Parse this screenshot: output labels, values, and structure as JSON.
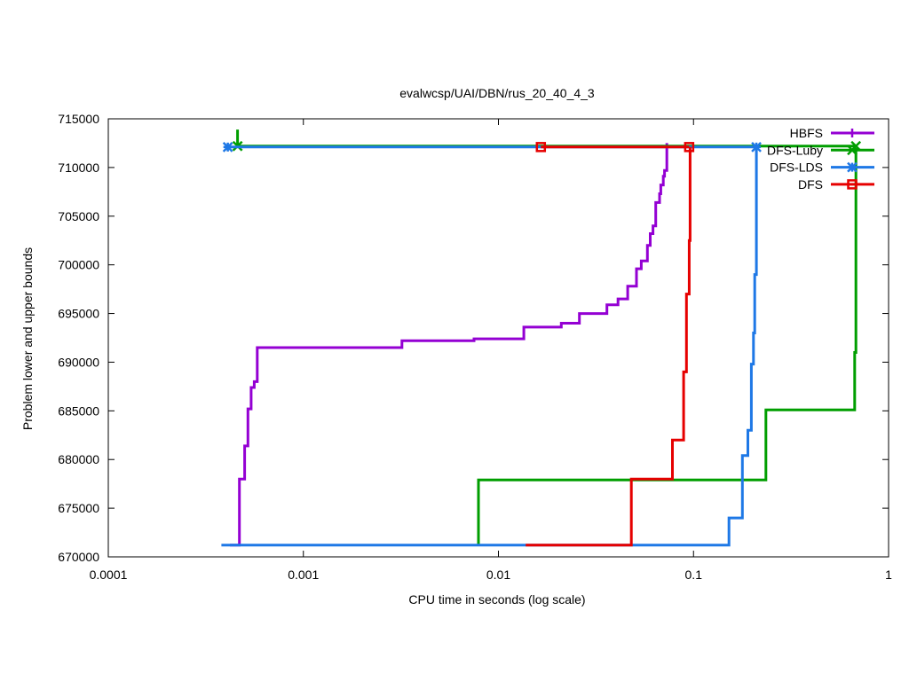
{
  "chart_data": {
    "type": "line",
    "title": "evalwcsp/UAI/DBN/rus_20_40_4_3",
    "xlabel": "CPU time in seconds (log scale)",
    "ylabel": "Problem lower and upper bounds",
    "x_scale": "log",
    "xlim": [
      0.0001,
      1
    ],
    "ylim": [
      670000,
      715000
    ],
    "x_ticks": [
      {
        "value": 0.0001,
        "label": "0.0001"
      },
      {
        "value": 0.001,
        "label": "0.001"
      },
      {
        "value": 0.01,
        "label": "0.01"
      },
      {
        "value": 0.1,
        "label": "0.1"
      },
      {
        "value": 1,
        "label": "1"
      }
    ],
    "y_ticks": [
      {
        "value": 670000,
        "label": "670000"
      },
      {
        "value": 675000,
        "label": "675000"
      },
      {
        "value": 680000,
        "label": "680000"
      },
      {
        "value": 685000,
        "label": "685000"
      },
      {
        "value": 690000,
        "label": "690000"
      },
      {
        "value": 695000,
        "label": "695000"
      },
      {
        "value": 700000,
        "label": "700000"
      },
      {
        "value": 705000,
        "label": "705000"
      },
      {
        "value": 710000,
        "label": "710000"
      },
      {
        "value": 715000,
        "label": "715000"
      }
    ],
    "grid": false,
    "legend_position": "top-right",
    "series": [
      {
        "name": "HBFS",
        "color": "#9400d3",
        "marker": "plus",
        "lower": [
          [
            0.00042,
            671200
          ],
          [
            0.00047,
            671200
          ],
          [
            0.00047,
            678000
          ],
          [
            0.0005,
            678000
          ],
          [
            0.0005,
            681400
          ],
          [
            0.00052,
            681400
          ],
          [
            0.00052,
            685200
          ],
          [
            0.00054,
            685200
          ],
          [
            0.00054,
            687400
          ],
          [
            0.00056,
            687400
          ],
          [
            0.00056,
            688000
          ],
          [
            0.00058,
            688000
          ],
          [
            0.00058,
            691500
          ],
          [
            0.0032,
            691500
          ],
          [
            0.0032,
            692200
          ],
          [
            0.0075,
            692200
          ],
          [
            0.0075,
            692400
          ],
          [
            0.0135,
            692400
          ],
          [
            0.0135,
            693600
          ],
          [
            0.021,
            693600
          ],
          [
            0.021,
            694000
          ],
          [
            0.026,
            694000
          ],
          [
            0.026,
            695000
          ],
          [
            0.036,
            695000
          ],
          [
            0.036,
            695900
          ],
          [
            0.041,
            695900
          ],
          [
            0.041,
            696500
          ],
          [
            0.046,
            696500
          ],
          [
            0.046,
            697800
          ],
          [
            0.051,
            697800
          ],
          [
            0.051,
            699600
          ],
          [
            0.054,
            699600
          ],
          [
            0.054,
            700400
          ],
          [
            0.058,
            700400
          ],
          [
            0.058,
            702000
          ],
          [
            0.06,
            702000
          ],
          [
            0.06,
            703200
          ],
          [
            0.062,
            703200
          ],
          [
            0.062,
            704000
          ],
          [
            0.064,
            704000
          ],
          [
            0.064,
            706400
          ],
          [
            0.067,
            706400
          ],
          [
            0.067,
            707300
          ],
          [
            0.068,
            707300
          ],
          [
            0.068,
            708200
          ],
          [
            0.07,
            708200
          ],
          [
            0.07,
            709100
          ],
          [
            0.071,
            709100
          ],
          [
            0.071,
            709700
          ],
          [
            0.073,
            709700
          ],
          [
            0.073,
            712500
          ]
        ],
        "upper": [],
        "markers": []
      },
      {
        "name": "DFS-Luby",
        "color": "#009e00",
        "marker": "x",
        "lower": [
          [
            0.0079,
            671200
          ],
          [
            0.0079,
            677900
          ],
          [
            0.235,
            677900
          ],
          [
            0.235,
            685100
          ],
          [
            0.67,
            685100
          ],
          [
            0.67,
            691000
          ],
          [
            0.68,
            691000
          ],
          [
            0.68,
            712000
          ]
        ],
        "upper": [
          [
            0.00046,
            713900
          ],
          [
            0.00046,
            712200
          ],
          [
            0.68,
            712200
          ]
        ],
        "markers": [
          [
            0.00046,
            712200
          ],
          [
            0.68,
            712200
          ]
        ]
      },
      {
        "name": "DFS-LDS",
        "color": "#1e78e6",
        "marker": "star",
        "lower": [
          [
            0.00038,
            671200
          ],
          [
            0.152,
            671200
          ],
          [
            0.152,
            674000
          ],
          [
            0.178,
            674000
          ],
          [
            0.178,
            680400
          ],
          [
            0.19,
            680400
          ],
          [
            0.19,
            683000
          ],
          [
            0.198,
            683000
          ],
          [
            0.198,
            689800
          ],
          [
            0.203,
            689800
          ],
          [
            0.203,
            693000
          ],
          [
            0.206,
            693000
          ],
          [
            0.206,
            699000
          ],
          [
            0.21,
            699000
          ],
          [
            0.21,
            712000
          ]
        ],
        "upper": [
          [
            0.00041,
            712100
          ],
          [
            0.21,
            712100
          ]
        ],
        "markers": [
          [
            0.00041,
            712100
          ],
          [
            0.21,
            712100
          ]
        ]
      },
      {
        "name": "DFS",
        "color": "#e60000",
        "marker": "square",
        "lower": [
          [
            0.0138,
            671200
          ],
          [
            0.048,
            671200
          ],
          [
            0.048,
            678000
          ],
          [
            0.078,
            678000
          ],
          [
            0.078,
            682000
          ],
          [
            0.089,
            682000
          ],
          [
            0.089,
            689000
          ],
          [
            0.092,
            689000
          ],
          [
            0.092,
            697000
          ],
          [
            0.095,
            697000
          ],
          [
            0.095,
            702500
          ],
          [
            0.096,
            702500
          ],
          [
            0.096,
            712100
          ]
        ],
        "upper": [
          [
            0.0165,
            712100
          ],
          [
            0.095,
            712100
          ]
        ],
        "markers": [
          [
            0.0165,
            712100
          ],
          [
            0.095,
            712100
          ]
        ]
      }
    ]
  }
}
